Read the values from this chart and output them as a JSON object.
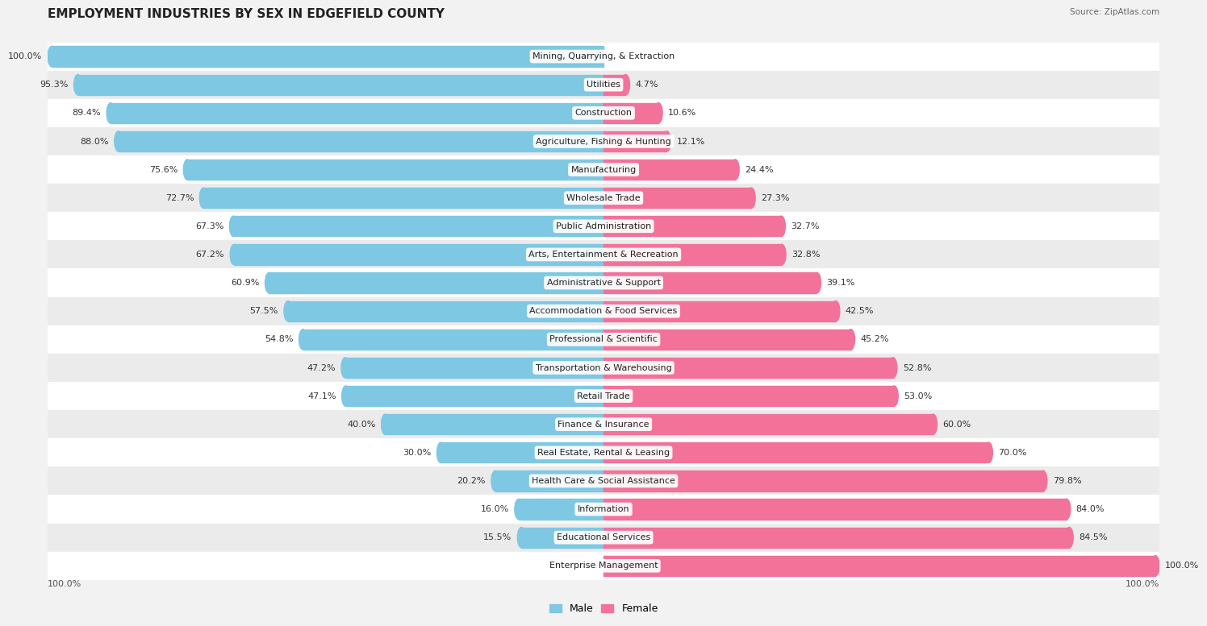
{
  "title": "EMPLOYMENT INDUSTRIES BY SEX IN EDGEFIELD COUNTY",
  "source": "Source: ZipAtlas.com",
  "categories": [
    "Mining, Quarrying, & Extraction",
    "Utilities",
    "Construction",
    "Agriculture, Fishing & Hunting",
    "Manufacturing",
    "Wholesale Trade",
    "Public Administration",
    "Arts, Entertainment & Recreation",
    "Administrative & Support",
    "Accommodation & Food Services",
    "Professional & Scientific",
    "Transportation & Warehousing",
    "Retail Trade",
    "Finance & Insurance",
    "Real Estate, Rental & Leasing",
    "Health Care & Social Assistance",
    "Information",
    "Educational Services",
    "Enterprise Management"
  ],
  "male": [
    100.0,
    95.3,
    89.4,
    88.0,
    75.6,
    72.7,
    67.3,
    67.2,
    60.9,
    57.5,
    54.8,
    47.2,
    47.1,
    40.0,
    30.0,
    20.2,
    16.0,
    15.5,
    0.0
  ],
  "female": [
    0.0,
    4.7,
    10.6,
    12.1,
    24.4,
    27.3,
    32.7,
    32.8,
    39.1,
    42.5,
    45.2,
    52.8,
    53.0,
    60.0,
    70.0,
    79.8,
    84.0,
    84.5,
    100.0
  ],
  "male_color": "#7ec8e3",
  "female_color": "#f3729a",
  "bg_color": "#f2f2f2",
  "row_colors": [
    "#ffffff",
    "#ebebeb"
  ],
  "title_fontsize": 11,
  "label_fontsize": 8,
  "bar_label_fontsize": 8,
  "source_fontsize": 7.5
}
